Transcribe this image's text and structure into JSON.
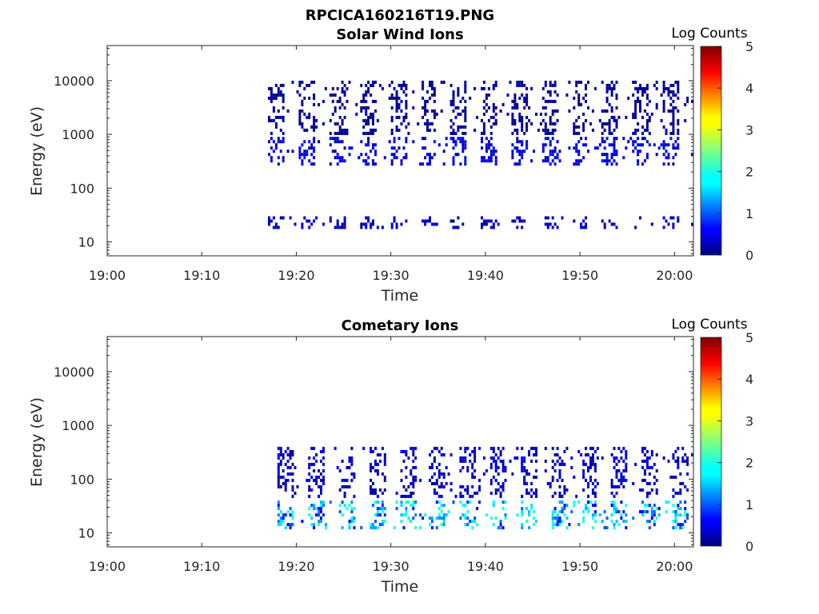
{
  "figure_title": "RPCICA160216T19.PNG",
  "chart_data": [
    {
      "type": "heatmap",
      "title": "Solar Wind Ions",
      "xlabel": "Time",
      "ylabel": "Energy (eV)",
      "x_ticks": [
        "19:00",
        "19:10",
        "19:20",
        "19:30",
        "19:40",
        "19:50",
        "20:00"
      ],
      "x_range": [
        "19:00",
        "20:02"
      ],
      "y_scale": "log",
      "y_ticks": [
        "10",
        "100",
        "1000",
        "10000"
      ],
      "y_range": [
        5.5,
        45000
      ],
      "colorbar": {
        "label": "Log Counts",
        "range": [
          0,
          5
        ],
        "ticks": [
          "0",
          "1",
          "2",
          "3",
          "4",
          "5"
        ],
        "colormap": "jet"
      },
      "data_start": "19:17",
      "data_end": "20:02",
      "bands": [
        {
          "energy_low_eV": 300,
          "energy_high_eV": 900,
          "dominant_level": 0.4
        },
        {
          "energy_low_eV": 18,
          "energy_high_eV": 30,
          "dominant_level": 0.3
        },
        {
          "energy_low_eV": 1000,
          "energy_high_eV": 10000,
          "dominant_level": 0.1
        }
      ],
      "max_level": 0.7
    },
    {
      "type": "heatmap",
      "title": "Cometary Ions",
      "xlabel": "Time",
      "ylabel": "Energy (eV)",
      "x_ticks": [
        "19:00",
        "19:10",
        "19:20",
        "19:30",
        "19:40",
        "19:50",
        "20:00"
      ],
      "x_range": [
        "19:00",
        "20:02"
      ],
      "y_scale": "log",
      "y_ticks": [
        "10",
        "100",
        "1000",
        "10000"
      ],
      "y_range": [
        5.5,
        45000
      ],
      "colorbar": {
        "label": "Log Counts",
        "range": [
          0,
          5
        ],
        "ticks": [
          "0",
          "1",
          "2",
          "3",
          "4",
          "5"
        ],
        "colormap": "jet"
      },
      "data_start": "19:18",
      "data_end": "20:02",
      "bands": [
        {
          "energy_low_eV": 12,
          "energy_high_eV": 40,
          "dominant_level": 1.2
        },
        {
          "energy_low_eV": 50,
          "energy_high_eV": 400,
          "dominant_level": 0.3
        }
      ],
      "max_level": 2.0
    }
  ]
}
